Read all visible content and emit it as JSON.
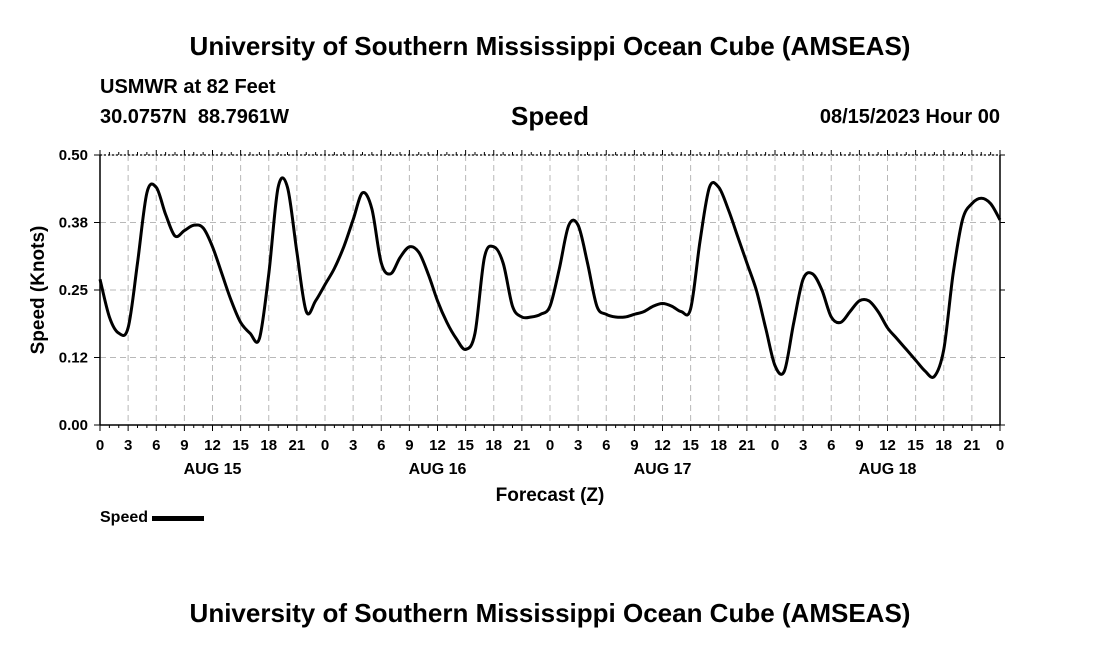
{
  "header": {
    "title": "University of Southern Mississippi Ocean Cube (AMSEAS)",
    "station_line": "USMWR at 82 Feet",
    "coords_line": "30.0757N  88.7961W",
    "variable": "Speed",
    "datetime": "08/15/2023 Hour 00"
  },
  "footer": {
    "title": "University of Southern Mississippi Ocean Cube (AMSEAS)"
  },
  "legend": {
    "label": "Speed",
    "color": "#000000"
  },
  "chart_data": {
    "type": "line",
    "title": "Speed",
    "xlabel": "Forecast (Z)",
    "ylabel": "Speed (Knots)",
    "ylim": [
      0,
      0.5
    ],
    "xlim": [
      0,
      96
    ],
    "y_ticks": [
      "0.00",
      "0.12",
      "0.25",
      "0.38",
      "0.50"
    ],
    "y_tick_values": [
      0,
      0.125,
      0.25,
      0.375,
      0.5
    ],
    "x_tick_labels": [
      "0",
      "3",
      "6",
      "9",
      "12",
      "15",
      "18",
      "21",
      "0",
      "3",
      "6",
      "9",
      "12",
      "15",
      "18",
      "21",
      "0",
      "3",
      "6",
      "9",
      "12",
      "15",
      "18",
      "21",
      "0",
      "3",
      "6",
      "9",
      "12",
      "15",
      "18",
      "21",
      "0"
    ],
    "day_labels": [
      {
        "label": "AUG 15",
        "hour": 12
      },
      {
        "label": "AUG 16",
        "hour": 36
      },
      {
        "label": "AUG 17",
        "hour": 60
      },
      {
        "label": "AUG 18",
        "hour": 84
      }
    ],
    "grid": true,
    "series": [
      {
        "name": "Speed",
        "color": "#000000",
        "x": [
          0,
          1,
          2,
          3,
          4,
          5,
          6,
          7,
          8,
          9,
          10,
          11,
          12,
          13,
          14,
          15,
          16,
          17,
          18,
          19,
          20,
          21,
          22,
          23,
          24,
          25,
          26,
          27,
          28,
          29,
          30,
          31,
          32,
          33,
          34,
          35,
          36,
          37,
          38,
          39,
          40,
          41,
          42,
          43,
          44,
          45,
          46,
          47,
          48,
          49,
          50,
          51,
          52,
          53,
          54,
          55,
          56,
          57,
          58,
          59,
          60,
          61,
          62,
          63,
          64,
          65,
          66,
          67,
          68,
          69,
          70,
          71,
          72,
          73,
          74,
          75,
          76,
          77,
          78,
          79,
          80,
          81,
          82,
          83,
          84,
          85,
          86,
          87,
          88,
          89,
          90,
          91,
          92,
          93,
          94,
          95,
          96
        ],
        "values": [
          0.27,
          0.2,
          0.17,
          0.18,
          0.3,
          0.43,
          0.44,
          0.39,
          0.35,
          0.36,
          0.37,
          0.365,
          0.33,
          0.28,
          0.23,
          0.19,
          0.17,
          0.16,
          0.28,
          0.44,
          0.44,
          0.32,
          0.21,
          0.23,
          0.26,
          0.29,
          0.33,
          0.38,
          0.43,
          0.4,
          0.3,
          0.28,
          0.31,
          0.33,
          0.32,
          0.28,
          0.23,
          0.19,
          0.16,
          0.14,
          0.17,
          0.31,
          0.33,
          0.3,
          0.22,
          0.2,
          0.2,
          0.205,
          0.22,
          0.29,
          0.37,
          0.37,
          0.3,
          0.22,
          0.205,
          0.2,
          0.2,
          0.205,
          0.21,
          0.22,
          0.225,
          0.22,
          0.21,
          0.215,
          0.34,
          0.44,
          0.44,
          0.4,
          0.35,
          0.3,
          0.25,
          0.18,
          0.11,
          0.1,
          0.19,
          0.27,
          0.28,
          0.25,
          0.2,
          0.19,
          0.21,
          0.23,
          0.23,
          0.21,
          0.18,
          0.16,
          0.14,
          0.12,
          0.1,
          0.09,
          0.14,
          0.28,
          0.38,
          0.41,
          0.42,
          0.41,
          0.38
        ]
      }
    ]
  }
}
